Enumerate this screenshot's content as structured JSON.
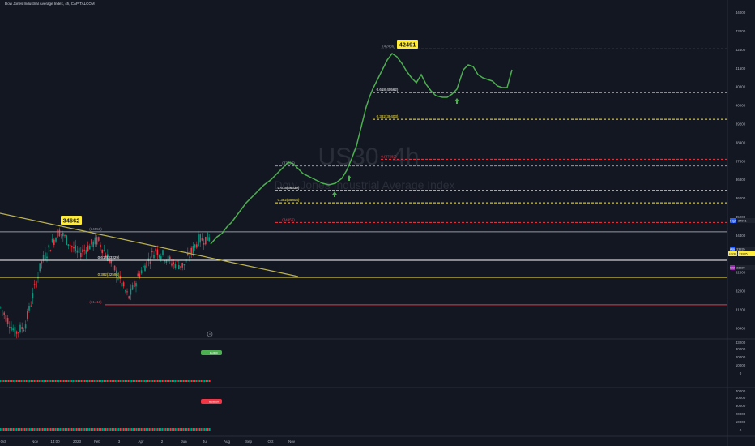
{
  "header": {
    "title": "Dow Jones Industrial Average Index, 4h, CAPITALCOM"
  },
  "watermark": {
    "symbol": "US30, 4h",
    "name": "Dow Jones Industrial Average Index"
  },
  "colors": {
    "background": "#131722",
    "projection": "#4caf50",
    "price_up": "#089981",
    "price_down": "#f23645",
    "yellow": "#ffeb3b",
    "red_line": "#f23645",
    "white_line": "#ffffff"
  },
  "chart_data": {
    "type": "line",
    "x_ticks": [
      "Oct",
      "Nov",
      "14:00",
      "2023",
      "Feb",
      "3",
      "Apr",
      "2",
      "Jun",
      "Jul",
      "Aug",
      "Sep",
      "Oct",
      "Nov"
    ],
    "y_ticks": [
      30400,
      31200,
      32000,
      32800,
      33600,
      34400,
      35200,
      36000,
      36800,
      37600,
      38400,
      39200,
      40000,
      40800,
      41600,
      42400,
      43200,
      44000
    ],
    "ylim": [
      29800,
      44300
    ],
    "callouts": [
      {
        "label": "34662",
        "value": 34662
      },
      {
        "label": "42491",
        "value": 42491
      }
    ],
    "levels": [
      {
        "label": "0.618(33329)",
        "value": 33329,
        "color": "#ffffff"
      },
      {
        "label": "0.382(32594)",
        "value": 32594,
        "color": "#ffeb3b"
      },
      {
        "label": "(31411)",
        "value": 31411,
        "color": "#f23645"
      },
      {
        "label": "(34558)",
        "value": 34558,
        "color": "#9598a1"
      },
      {
        "label": "0.618(36339)",
        "value": 36339,
        "color": "#ffffff"
      },
      {
        "label": "0.382(35804)",
        "value": 35804,
        "color": "#ffeb3b"
      },
      {
        "label": "(34956)",
        "value": 34956,
        "color": "#f23645"
      },
      {
        "label": "(37396)",
        "value": 37396,
        "color": "#9598a1"
      },
      {
        "label": "0.(37682)",
        "value": 37682,
        "color": "#f23645"
      },
      {
        "label": "(42436)",
        "value": 42436,
        "color": "#9598a1"
      },
      {
        "label": "0.618(40562)",
        "value": 40562,
        "color": "#ffffff"
      },
      {
        "label": "0.382(39403)",
        "value": 39403,
        "color": "#ffeb3b"
      }
    ],
    "price_tags": [
      {
        "label": "High",
        "value": "34961",
        "color": "#2962ff"
      },
      {
        "label": "Ask",
        "value": "33935",
        "color": "#2962ff"
      },
      {
        "label": "US30",
        "value": "33935",
        "color": "#ffeb3b"
      },
      {
        "label": "Bid",
        "value": "33920",
        "color": "#9c27b0"
      }
    ],
    "projection_path": [
      [
        260,
        301
      ],
      [
        268,
        292
      ],
      [
        274,
        288
      ],
      [
        280,
        280
      ],
      [
        286,
        274
      ],
      [
        292,
        266
      ],
      [
        298,
        258
      ],
      [
        304,
        250
      ],
      [
        310,
        244
      ],
      [
        318,
        236
      ],
      [
        326,
        228
      ],
      [
        334,
        222
      ],
      [
        342,
        214
      ],
      [
        350,
        206
      ],
      [
        356,
        200
      ],
      [
        362,
        202
      ],
      [
        368,
        208
      ],
      [
        374,
        214
      ],
      [
        382,
        218
      ],
      [
        390,
        222
      ],
      [
        398,
        226
      ],
      [
        406,
        228
      ],
      [
        414,
        226
      ],
      [
        422,
        220
      ],
      [
        428,
        210
      ],
      [
        434,
        196
      ],
      [
        440,
        180
      ],
      [
        444,
        164
      ],
      [
        448,
        148
      ],
      [
        452,
        132
      ],
      [
        456,
        120
      ],
      [
        460,
        110
      ],
      [
        466,
        98
      ],
      [
        472,
        86
      ],
      [
        478,
        74
      ],
      [
        484,
        66
      ],
      [
        490,
        70
      ],
      [
        496,
        78
      ],
      [
        502,
        88
      ],
      [
        508,
        96
      ],
      [
        514,
        102
      ],
      [
        520,
        92
      ],
      [
        526,
        104
      ],
      [
        532,
        112
      ],
      [
        538,
        118
      ],
      [
        546,
        120
      ],
      [
        552,
        120
      ],
      [
        558,
        116
      ],
      [
        564,
        110
      ],
      [
        568,
        98
      ],
      [
        572,
        86
      ],
      [
        578,
        80
      ],
      [
        584,
        82
      ],
      [
        590,
        92
      ],
      [
        596,
        96
      ],
      [
        602,
        98
      ],
      [
        608,
        100
      ],
      [
        614,
        106
      ],
      [
        620,
        108
      ],
      [
        626,
        108
      ],
      [
        632,
        86
      ]
    ],
    "up_arrows": [
      [
        413,
        240
      ],
      [
        431,
        220
      ],
      [
        564,
        125
      ]
    ],
    "indicators": [
      {
        "label": "Bullish",
        "value": "43200",
        "ticks": [
          "30000",
          "20000",
          "10000",
          "0"
        ]
      },
      {
        "label": "Bearish",
        "value": "40000",
        "ticks": [
          "40000",
          "30000",
          "20000",
          "10000",
          "0"
        ]
      }
    ]
  }
}
